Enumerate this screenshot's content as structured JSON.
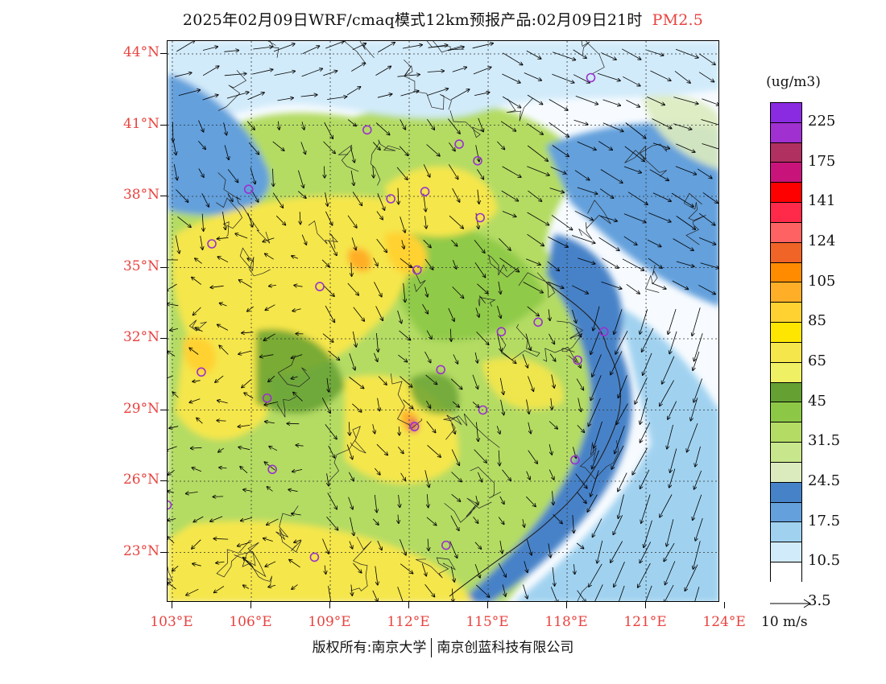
{
  "title": {
    "text": "2025年02月09日WRF/cmaq模式12km预报产品:02月09日21时",
    "species": "PM2.5"
  },
  "colors": {
    "axis_label": "#e8433f",
    "ocean": "#f7fbff"
  },
  "map": {
    "lat_labels": [
      {
        "lat": 44,
        "label": "44°N"
      },
      {
        "lat": 41,
        "label": "41°N"
      },
      {
        "lat": 38,
        "label": "38°N"
      },
      {
        "lat": 35,
        "label": "35°N"
      },
      {
        "lat": 32,
        "label": "32°N"
      },
      {
        "lat": 29,
        "label": "29°N"
      },
      {
        "lat": 26,
        "label": "26°N"
      },
      {
        "lat": 23,
        "label": "23°N"
      }
    ],
    "lon_labels": [
      {
        "lon": 103,
        "label": "103°E"
      },
      {
        "lon": 106,
        "label": "106°E"
      },
      {
        "lon": 109,
        "label": "109°E"
      },
      {
        "lon": 112,
        "label": "112°E"
      },
      {
        "lon": 115,
        "label": "115°E"
      },
      {
        "lon": 118,
        "label": "118°E"
      },
      {
        "lon": 121,
        "label": "121°E"
      },
      {
        "lon": 124,
        "label": "124°E"
      }
    ],
    "city_markers": [
      {
        "lon": 118.9,
        "lat": 43.0
      },
      {
        "lon": 110.4,
        "lat": 40.8
      },
      {
        "lon": 113.9,
        "lat": 40.2
      },
      {
        "lon": 114.6,
        "lat": 39.5
      },
      {
        "lon": 105.9,
        "lat": 38.3
      },
      {
        "lon": 111.3,
        "lat": 37.9
      },
      {
        "lon": 112.6,
        "lat": 38.2
      },
      {
        "lon": 114.7,
        "lat": 37.1
      },
      {
        "lon": 104.5,
        "lat": 36.0
      },
      {
        "lon": 112.3,
        "lat": 34.9
      },
      {
        "lon": 108.6,
        "lat": 34.2
      },
      {
        "lon": 116.9,
        "lat": 32.7
      },
      {
        "lon": 115.5,
        "lat": 32.3
      },
      {
        "lon": 119.4,
        "lat": 32.3
      },
      {
        "lon": 118.4,
        "lat": 31.1
      },
      {
        "lon": 104.1,
        "lat": 30.6
      },
      {
        "lon": 113.2,
        "lat": 30.7
      },
      {
        "lon": 106.6,
        "lat": 29.5
      },
      {
        "lon": 114.8,
        "lat": 29.0
      },
      {
        "lon": 112.2,
        "lat": 28.3
      },
      {
        "lon": 118.3,
        "lat": 26.9
      },
      {
        "lon": 106.8,
        "lat": 26.5
      },
      {
        "lon": 102.8,
        "lat": 25.0
      },
      {
        "lon": 108.4,
        "lat": 22.8
      },
      {
        "lon": 113.4,
        "lat": 23.3
      }
    ]
  },
  "legend": {
    "unit": "(ug/m3)",
    "labels": [
      "225",
      "175",
      "141",
      "124",
      "105",
      "85",
      "65",
      "45",
      "31.5",
      "24.5",
      "17.5",
      "10.5",
      "3.5"
    ],
    "colors": [
      "#8a2be2",
      "#a030d0",
      "#b03060",
      "#c8147a",
      "#ff0000",
      "#ff2a4a",
      "#ff6262",
      "#f06428",
      "#ff8c00",
      "#ffae28",
      "#ffd232",
      "#ffe600",
      "#f5e64b",
      "#f0f064",
      "#64a032",
      "#8cc846",
      "#b4dc64",
      "#c8e68c",
      "#dcebbe",
      "#4682c8",
      "#64a0dc",
      "#a0d2f0",
      "#d2ebfa",
      "#ffffff"
    ]
  },
  "wind_reference": {
    "label": "10 m/s"
  },
  "copyright": {
    "left": "版权所有:南京大学",
    "right": "南京创蓝科技有限公司"
  }
}
